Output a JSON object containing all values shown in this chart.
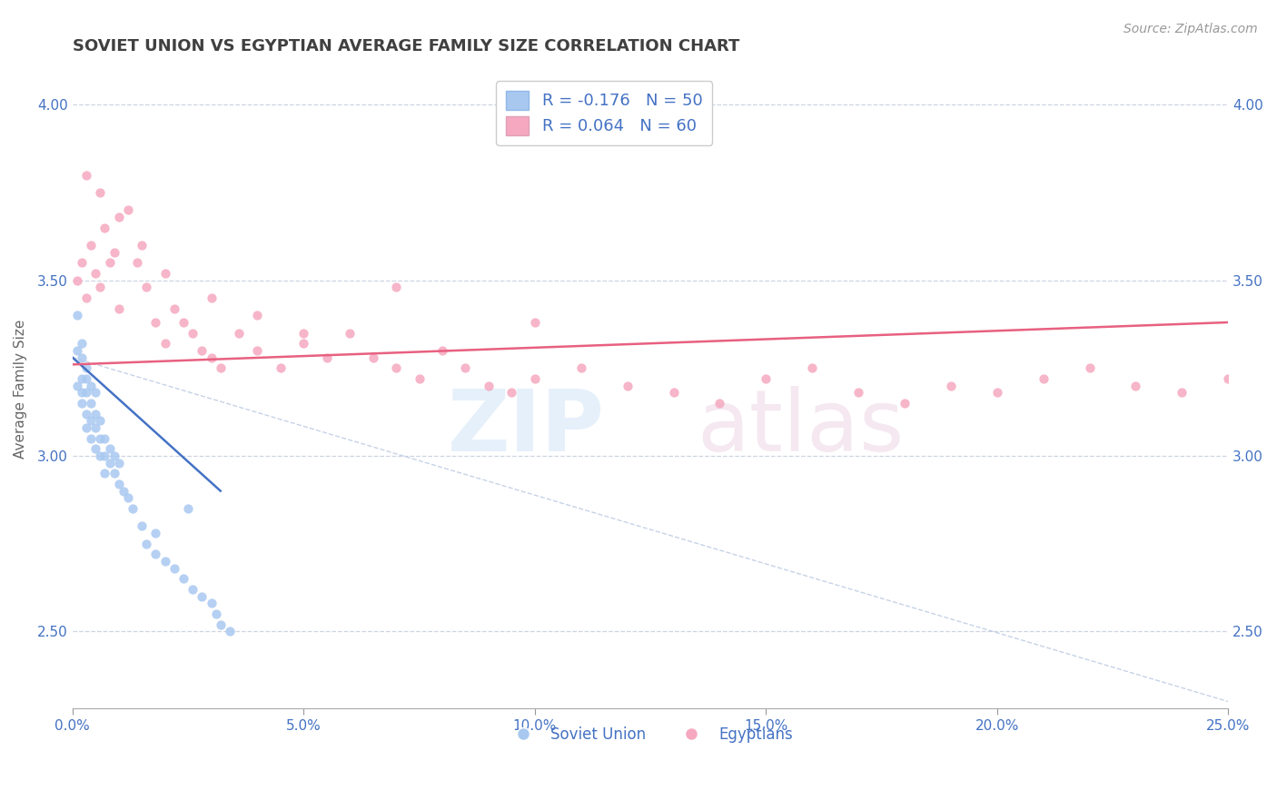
{
  "title": "SOVIET UNION VS EGYPTIAN AVERAGE FAMILY SIZE CORRELATION CHART",
  "source": "Source: ZipAtlas.com",
  "ylabel": "Average Family Size",
  "yticks": [
    2.5,
    3.0,
    3.5,
    4.0
  ],
  "xlim": [
    0.0,
    0.25
  ],
  "ylim": [
    2.28,
    4.1
  ],
  "legend_entry1": "R = -0.176   N = 50",
  "legend_entry2": "R = 0.064   N = 60",
  "legend_label1": "Soviet Union",
  "legend_label2": "Egyptians",
  "soviet_color": "#a8c8f0",
  "egypt_color": "#f5a8c0",
  "soviet_line_color": "#4472c4",
  "egypt_line_color": "#e86080",
  "title_color": "#404040",
  "axis_color": "#4472c4",
  "grid_color": "#c8d0e0",
  "soviet_x": [
    0.001,
    0.001,
    0.001,
    0.002,
    0.002,
    0.002,
    0.002,
    0.002,
    0.003,
    0.003,
    0.003,
    0.003,
    0.003,
    0.004,
    0.004,
    0.004,
    0.004,
    0.005,
    0.005,
    0.005,
    0.005,
    0.006,
    0.006,
    0.006,
    0.007,
    0.007,
    0.007,
    0.008,
    0.008,
    0.009,
    0.009,
    0.01,
    0.01,
    0.011,
    0.012,
    0.013,
    0.015,
    0.016,
    0.018,
    0.02,
    0.022,
    0.024,
    0.026,
    0.028,
    0.03,
    0.031,
    0.032,
    0.034,
    0.018,
    0.025
  ],
  "soviet_y": [
    3.4,
    3.3,
    3.2,
    3.32,
    3.28,
    3.22,
    3.18,
    3.15,
    3.25,
    3.22,
    3.18,
    3.12,
    3.08,
    3.2,
    3.15,
    3.1,
    3.05,
    3.18,
    3.12,
    3.08,
    3.02,
    3.1,
    3.05,
    3.0,
    3.05,
    3.0,
    2.95,
    3.02,
    2.98,
    3.0,
    2.95,
    2.98,
    2.92,
    2.9,
    2.88,
    2.85,
    2.8,
    2.75,
    2.72,
    2.7,
    2.68,
    2.65,
    2.62,
    2.6,
    2.58,
    2.55,
    2.52,
    2.5,
    2.78,
    2.85
  ],
  "egypt_x": [
    0.001,
    0.002,
    0.003,
    0.004,
    0.005,
    0.006,
    0.007,
    0.008,
    0.009,
    0.01,
    0.012,
    0.014,
    0.016,
    0.018,
    0.02,
    0.022,
    0.024,
    0.026,
    0.028,
    0.03,
    0.032,
    0.036,
    0.04,
    0.045,
    0.05,
    0.055,
    0.06,
    0.065,
    0.07,
    0.075,
    0.08,
    0.085,
    0.09,
    0.095,
    0.1,
    0.11,
    0.12,
    0.13,
    0.14,
    0.15,
    0.16,
    0.17,
    0.18,
    0.19,
    0.2,
    0.21,
    0.22,
    0.23,
    0.24,
    0.25,
    0.003,
    0.006,
    0.01,
    0.015,
    0.02,
    0.03,
    0.04,
    0.05,
    0.07,
    0.1
  ],
  "egypt_y": [
    3.5,
    3.55,
    3.45,
    3.6,
    3.52,
    3.48,
    3.65,
    3.55,
    3.58,
    3.42,
    3.7,
    3.55,
    3.48,
    3.38,
    3.32,
    3.42,
    3.38,
    3.35,
    3.3,
    3.28,
    3.25,
    3.35,
    3.3,
    3.25,
    3.32,
    3.28,
    3.35,
    3.28,
    3.25,
    3.22,
    3.3,
    3.25,
    3.2,
    3.18,
    3.22,
    3.25,
    3.2,
    3.18,
    3.15,
    3.22,
    3.25,
    3.18,
    3.15,
    3.2,
    3.18,
    3.22,
    3.25,
    3.2,
    3.18,
    3.22,
    3.8,
    3.75,
    3.68,
    3.6,
    3.52,
    3.45,
    3.4,
    3.35,
    3.48,
    3.38
  ],
  "soviet_trend_x": [
    0.0,
    0.032
  ],
  "soviet_trend_y": [
    3.28,
    2.9
  ],
  "egypt_trend_x": [
    0.0,
    0.25
  ],
  "egypt_trend_y": [
    3.26,
    3.38
  ],
  "dashed_line_x": [
    0.0,
    0.25
  ],
  "dashed_line_y": [
    3.28,
    2.3
  ]
}
